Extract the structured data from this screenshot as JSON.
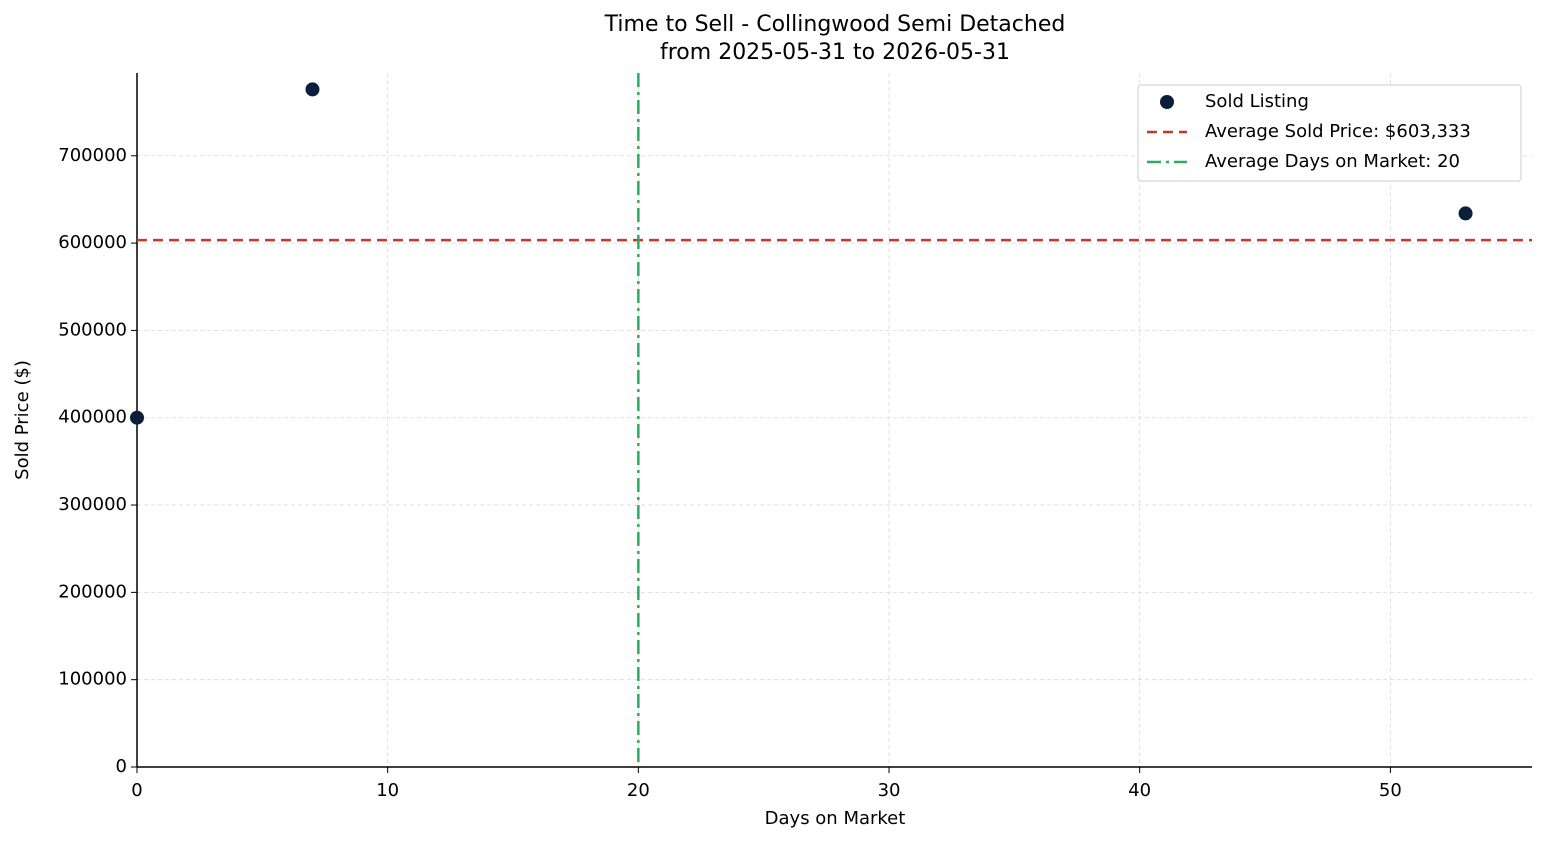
{
  "chart_data": {
    "type": "scatter",
    "title": "Time to Sell - Collingwood Semi Detached",
    "subtitle": "from 2025-05-31 to 2026-05-31",
    "x_label": "Days on Market",
    "y_label": "Sold Price ($)",
    "series": [
      {
        "name": "Sold Listing",
        "color": "#0b1f3a",
        "x": [
          0,
          7,
          53
        ],
        "values": [
          400000,
          776000,
          634000
        ]
      }
    ],
    "reference_lines": [
      {
        "name": "Average Sold Price: $603,333",
        "axis": "y",
        "value": 603333,
        "color": "#c0392b",
        "style": "dashed"
      },
      {
        "name": "Average Days on Market: 20",
        "axis": "x",
        "value": 20,
        "color": "#27ae60",
        "style": "dashdot"
      }
    ],
    "xlim": [
      0,
      55.65
    ],
    "ylim": [
      0,
      794800
    ],
    "xticks": [
      0,
      10,
      20,
      30,
      40,
      50
    ],
    "yticks": [
      0,
      100000,
      200000,
      300000,
      400000,
      500000,
      600000,
      700000
    ],
    "grid": true,
    "legend": "upper right"
  }
}
